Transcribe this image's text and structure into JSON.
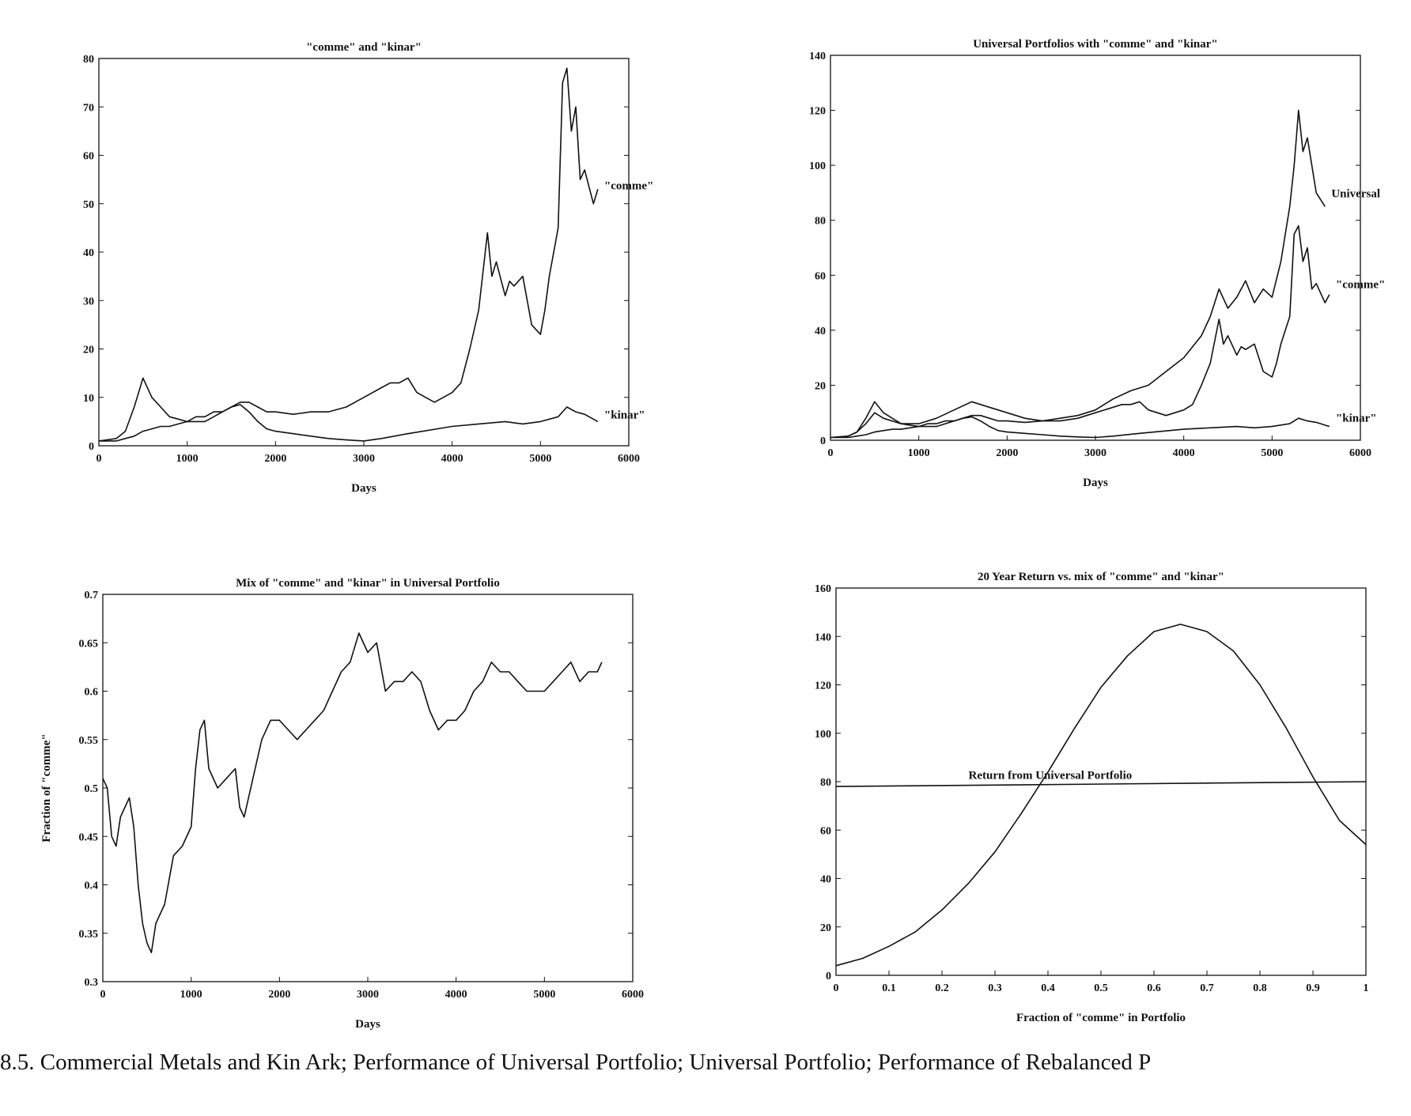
{
  "caption": "8.5. Commercial Metals and Kin Ark; Performance of Universal Portfolio; Universal Portfolio; Performance of Rebalanced P",
  "chart_data": [
    {
      "type": "line",
      "title": "\"comme\" and \"kinar\"",
      "xlabel": "Days",
      "ylabel": "",
      "xlim": [
        0,
        6000
      ],
      "ylim": [
        0,
        80
      ],
      "xticks": [
        0,
        1000,
        2000,
        3000,
        4000,
        5000,
        6000
      ],
      "yticks": [
        0,
        10,
        20,
        30,
        40,
        50,
        60,
        70,
        80
      ],
      "grid": false,
      "series": [
        {
          "name": "\"comme\"",
          "x": [
            0,
            200,
            300,
            400,
            500,
            600,
            700,
            800,
            900,
            1000,
            1100,
            1200,
            1300,
            1400,
            1500,
            1600,
            1700,
            1800,
            1900,
            2000,
            2200,
            2400,
            2600,
            2800,
            3000,
            3200,
            3300,
            3400,
            3500,
            3600,
            3700,
            3800,
            3900,
            4000,
            4100,
            4200,
            4300,
            4400,
            4450,
            4500,
            4600,
            4650,
            4700,
            4800,
            4850,
            4900,
            5000,
            5050,
            5100,
            5150,
            5200,
            5250,
            5300,
            5350,
            5400,
            5450,
            5500,
            5600,
            5650
          ],
          "values": [
            1,
            1,
            1.5,
            2,
            3,
            3.5,
            4,
            4,
            4.5,
            5,
            6,
            6,
            7,
            7,
            8,
            9,
            9,
            8,
            7,
            7,
            6.5,
            7,
            7,
            8,
            10,
            12,
            13,
            13,
            14,
            11,
            10,
            9,
            10,
            11,
            13,
            20,
            28,
            44,
            35,
            38,
            31,
            34,
            33,
            35,
            30,
            25,
            23,
            28,
            35,
            40,
            45,
            75,
            78,
            65,
            70,
            55,
            57,
            50,
            53
          ]
        },
        {
          "name": "\"kinar\"",
          "x": [
            0,
            200,
            300,
            400,
            500,
            600,
            700,
            800,
            900,
            1000,
            1100,
            1200,
            1300,
            1400,
            1500,
            1600,
            1700,
            1800,
            1900,
            2000,
            2200,
            2400,
            2600,
            2800,
            3000,
            3200,
            3500,
            4000,
            4300,
            4600,
            4800,
            5000,
            5200,
            5300,
            5400,
            5500,
            5650
          ],
          "values": [
            1,
            1.5,
            3,
            8,
            14,
            10,
            8,
            6,
            5.5,
            5,
            5,
            5,
            6,
            7,
            8,
            8.5,
            7,
            5,
            3.5,
            3,
            2.5,
            2,
            1.5,
            1.2,
            1,
            1.5,
            2.5,
            4,
            4.5,
            5,
            4.5,
            5,
            6,
            8,
            7,
            6.5,
            5
          ]
        }
      ],
      "annotations": [
        "\"comme\"",
        "\"kinar\""
      ]
    },
    {
      "type": "line",
      "title": "Universal Portfolios with \"comme\" and \"kinar\"",
      "xlabel": "Days",
      "ylabel": "",
      "xlim": [
        0,
        6000
      ],
      "ylim": [
        0,
        140
      ],
      "xticks": [
        0,
        1000,
        2000,
        3000,
        4000,
        5000,
        6000
      ],
      "yticks": [
        0,
        20,
        40,
        60,
        80,
        100,
        120,
        140
      ],
      "grid": false,
      "series": [
        {
          "name": "Universal",
          "x": [
            0,
            200,
            300,
            400,
            500,
            600,
            800,
            1000,
            1200,
            1400,
            1600,
            1800,
            2000,
            2200,
            2400,
            2600,
            2800,
            3000,
            3200,
            3400,
            3600,
            3800,
            4000,
            4200,
            4300,
            4400,
            4500,
            4600,
            4700,
            4800,
            4900,
            5000,
            5100,
            5200,
            5250,
            5300,
            5350,
            5400,
            5500,
            5600
          ],
          "values": [
            1,
            1.5,
            3,
            6,
            10,
            8,
            6,
            6,
            8,
            11,
            14,
            12,
            10,
            8,
            7,
            8,
            9,
            11,
            15,
            18,
            20,
            25,
            30,
            38,
            45,
            55,
            48,
            52,
            58,
            50,
            55,
            52,
            65,
            85,
            100,
            120,
            105,
            110,
            90,
            85
          ]
        },
        {
          "name": "\"comme\"",
          "x": [
            0,
            200,
            300,
            400,
            500,
            600,
            700,
            800,
            900,
            1000,
            1100,
            1200,
            1300,
            1400,
            1500,
            1600,
            1700,
            1800,
            1900,
            2000,
            2200,
            2400,
            2600,
            2800,
            3000,
            3200,
            3300,
            3400,
            3500,
            3600,
            3700,
            3800,
            3900,
            4000,
            4100,
            4200,
            4300,
            4400,
            4450,
            4500,
            4600,
            4650,
            4700,
            4800,
            4850,
            4900,
            5000,
            5050,
            5100,
            5150,
            5200,
            5250,
            5300,
            5350,
            5400,
            5450,
            5500,
            5600,
            5650
          ],
          "values": [
            1,
            1,
            1.5,
            2,
            3,
            3.5,
            4,
            4,
            4.5,
            5,
            6,
            6,
            7,
            7,
            8,
            9,
            9,
            8,
            7,
            7,
            6.5,
            7,
            7,
            8,
            10,
            12,
            13,
            13,
            14,
            11,
            10,
            9,
            10,
            11,
            13,
            20,
            28,
            44,
            35,
            38,
            31,
            34,
            33,
            35,
            30,
            25,
            23,
            28,
            35,
            40,
            45,
            75,
            78,
            65,
            70,
            55,
            57,
            50,
            53
          ]
        },
        {
          "name": "\"kinar\"",
          "x": [
            0,
            200,
            300,
            400,
            500,
            600,
            700,
            800,
            900,
            1000,
            1100,
            1200,
            1300,
            1400,
            1500,
            1600,
            1700,
            1800,
            1900,
            2000,
            2200,
            2400,
            2600,
            2800,
            3000,
            3200,
            3500,
            4000,
            4300,
            4600,
            4800,
            5000,
            5200,
            5300,
            5400,
            5500,
            5650
          ],
          "values": [
            1,
            1.5,
            3,
            8,
            14,
            10,
            8,
            6,
            5.5,
            5,
            5,
            5,
            6,
            7,
            8,
            8.5,
            7,
            5,
            3.5,
            3,
            2.5,
            2,
            1.5,
            1.2,
            1,
            1.5,
            2.5,
            4,
            4.5,
            5,
            4.5,
            5,
            6,
            8,
            7,
            6.5,
            5
          ]
        }
      ],
      "annotations": [
        "Universal",
        "\"comme\"",
        "\"kinar\""
      ]
    },
    {
      "type": "line",
      "title": "Mix of \"comme\" and \"kinar\" in Universal Portfolio",
      "xlabel": "Days",
      "ylabel": "Fraction of \"comme\"",
      "xlim": [
        0,
        6000
      ],
      "ylim": [
        0.3,
        0.7
      ],
      "xticks": [
        0,
        1000,
        2000,
        3000,
        4000,
        5000,
        6000
      ],
      "yticks": [
        0.3,
        0.35,
        0.4,
        0.45,
        0.5,
        0.55,
        0.6,
        0.65,
        0.7
      ],
      "grid": false,
      "series": [
        {
          "name": "",
          "x": [
            0,
            50,
            100,
            150,
            200,
            250,
            300,
            350,
            400,
            450,
            500,
            550,
            600,
            700,
            800,
            900,
            1000,
            1050,
            1100,
            1150,
            1200,
            1300,
            1400,
            1500,
            1550,
            1600,
            1700,
            1800,
            1900,
            2000,
            2100,
            2200,
            2300,
            2400,
            2500,
            2600,
            2700,
            2800,
            2900,
            3000,
            3100,
            3200,
            3300,
            3400,
            3500,
            3600,
            3700,
            3800,
            3900,
            4000,
            4100,
            4200,
            4300,
            4400,
            4500,
            4600,
            4700,
            4800,
            4900,
            5000,
            5100,
            5200,
            5300,
            5400,
            5500,
            5600,
            5650
          ],
          "values": [
            0.51,
            0.5,
            0.45,
            0.44,
            0.47,
            0.48,
            0.49,
            0.46,
            0.4,
            0.36,
            0.34,
            0.33,
            0.36,
            0.38,
            0.43,
            0.44,
            0.46,
            0.52,
            0.56,
            0.57,
            0.52,
            0.5,
            0.51,
            0.52,
            0.48,
            0.47,
            0.51,
            0.55,
            0.57,
            0.57,
            0.56,
            0.55,
            0.56,
            0.57,
            0.58,
            0.6,
            0.62,
            0.63,
            0.66,
            0.64,
            0.65,
            0.6,
            0.61,
            0.61,
            0.62,
            0.61,
            0.58,
            0.56,
            0.57,
            0.57,
            0.58,
            0.6,
            0.61,
            0.63,
            0.62,
            0.62,
            0.61,
            0.6,
            0.6,
            0.6,
            0.61,
            0.62,
            0.63,
            0.61,
            0.62,
            0.62,
            0.63
          ]
        }
      ]
    },
    {
      "type": "line",
      "title": "20 Year Return vs. mix of \"comme\" and \"kinar\"",
      "xlabel": "Fraction of \"comme\" in Portfolio",
      "ylabel": "",
      "xlim": [
        0,
        1
      ],
      "ylim": [
        0,
        160
      ],
      "xticks": [
        0,
        0.1,
        0.2,
        0.3,
        0.4,
        0.5,
        0.6,
        0.7,
        0.8,
        0.9,
        1
      ],
      "yticks": [
        0,
        20,
        40,
        60,
        80,
        100,
        120,
        140,
        160
      ],
      "grid": false,
      "series": [
        {
          "name": "",
          "x": [
            0,
            0.05,
            0.1,
            0.15,
            0.2,
            0.25,
            0.3,
            0.35,
            0.4,
            0.45,
            0.5,
            0.55,
            0.6,
            0.65,
            0.7,
            0.75,
            0.8,
            0.85,
            0.9,
            0.95,
            1
          ],
          "values": [
            4,
            7,
            12,
            18,
            27,
            38,
            51,
            67,
            84,
            102,
            119,
            132,
            142,
            145,
            142,
            134,
            120,
            102,
            82,
            64,
            54
          ]
        },
        {
          "name": "",
          "x": [
            0,
            1
          ],
          "values": [
            78,
            80
          ]
        }
      ],
      "annotations": [
        "Return from Universal Portfolio"
      ]
    }
  ]
}
